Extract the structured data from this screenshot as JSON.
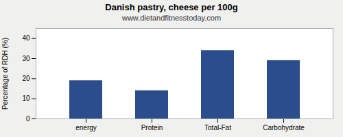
{
  "chart_data": {
    "type": "bar",
    "title": "Danish pastry, cheese per 100g",
    "subtitle": "www.dietandfitnesstoday.com",
    "categories": [
      "energy",
      "Protein",
      "Total-Fat",
      "Carbohydrate"
    ],
    "values": [
      19,
      14,
      34,
      29
    ],
    "color": "#2b4d8b",
    "ylabel": "Percentage of RDH (%)",
    "ylim": [
      0,
      45
    ],
    "yticks": [
      0,
      10,
      20,
      30,
      40
    ],
    "grid": true
  }
}
